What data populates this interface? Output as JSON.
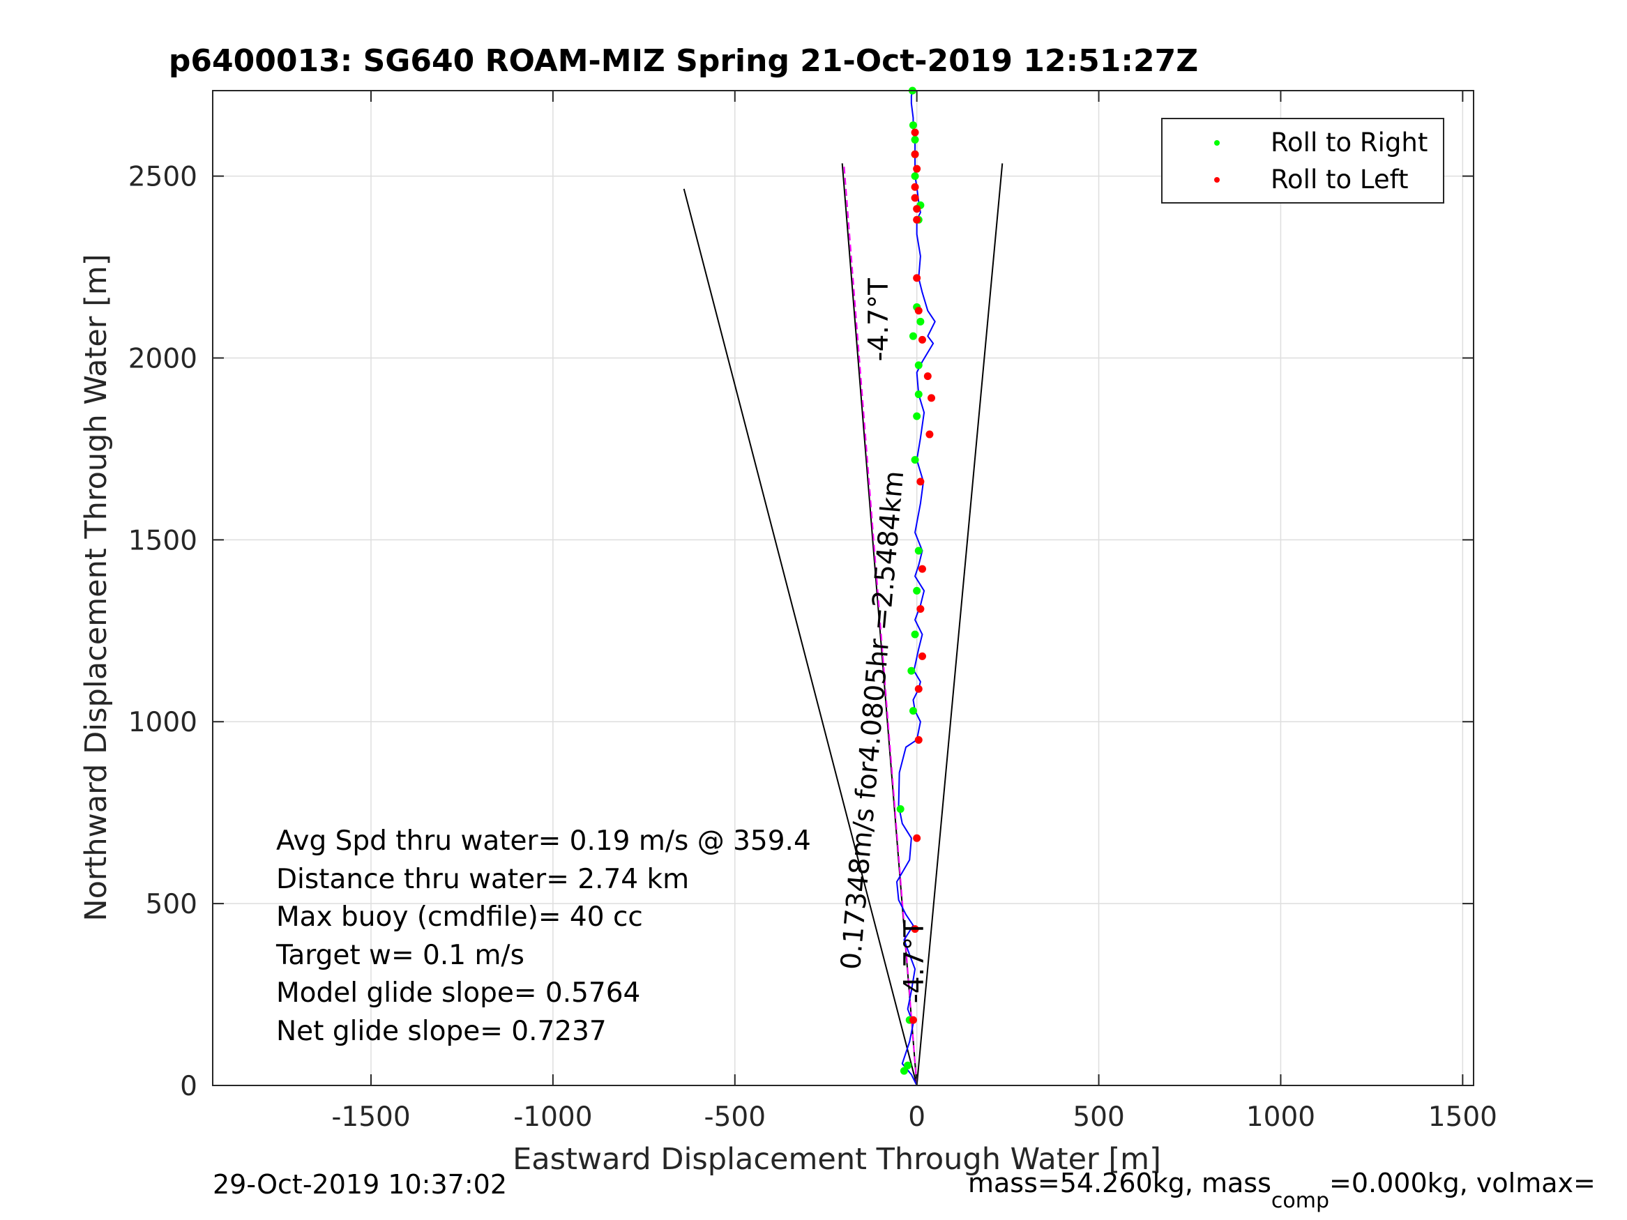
{
  "title": "p6400013: SG640 ROAM-MIZ Spring 21-Oct-2019 12:51:27Z",
  "chart_data": {
    "type": "line",
    "xlabel": "Eastward Displacement Through Water [m]",
    "ylabel": "Northward Displacement Through Water [m]",
    "xlim": [
      -1935,
      1530
    ],
    "ylim": [
      0,
      2735
    ],
    "xticks": [
      -1500,
      -1000,
      -500,
      0,
      500,
      1000,
      1500
    ],
    "yticks": [
      0,
      500,
      1000,
      1500,
      2000,
      2500
    ],
    "grid": true,
    "legend_position": "top-right",
    "legend": [
      {
        "label": "Roll to Right",
        "color": "#00ff00"
      },
      {
        "label": "Roll to Left",
        "color": "#ff0000"
      }
    ],
    "track": {
      "name": "glider-track",
      "color": "#0000ff",
      "x": [
        0,
        -15,
        -40,
        -20,
        -10,
        -25,
        -15,
        -5,
        -20,
        -35,
        -10,
        -30,
        -50,
        -55,
        -20,
        -15,
        -40,
        -50,
        -48,
        -30,
        0,
        10,
        -5,
        -10,
        5,
        10,
        -8,
        5,
        15,
        -5,
        10,
        20,
        -5,
        5,
        15,
        -5,
        10,
        18,
        0,
        10,
        20,
        5,
        0,
        15,
        45,
        30,
        50,
        30,
        15,
        5,
        10,
        0,
        0,
        10,
        5,
        0,
        -5,
        -5,
        -5,
        -5,
        -10,
        -10,
        -10,
        -15,
        -15,
        -12
      ],
      "y": [
        0,
        30,
        60,
        120,
        170,
        210,
        260,
        320,
        360,
        400,
        440,
        470,
        510,
        560,
        620,
        680,
        720,
        770,
        860,
        930,
        950,
        1000,
        1030,
        1060,
        1090,
        1110,
        1140,
        1200,
        1240,
        1280,
        1320,
        1360,
        1400,
        1430,
        1470,
        1520,
        1600,
        1660,
        1720,
        1780,
        1850,
        1900,
        1960,
        1990,
        2040,
        2060,
        2100,
        2130,
        2180,
        2220,
        2280,
        2340,
        2380,
        2400,
        2430,
        2470,
        2500,
        2540,
        2570,
        2600,
        2620,
        2640,
        2660,
        2700,
        2720,
        2735
      ]
    },
    "roll_right_points": {
      "x": [
        -35,
        -25,
        -20,
        -45,
        -10,
        -15,
        -5,
        0,
        5,
        -5,
        0,
        5,
        5,
        10,
        -10,
        0,
        5,
        10,
        -5,
        -5,
        -5,
        -10,
        -12
      ],
      "y": [
        40,
        55,
        180,
        760,
        1030,
        1140,
        1240,
        1360,
        1470,
        1720,
        1840,
        1900,
        1980,
        2100,
        2060,
        2140,
        2380,
        2420,
        2500,
        2560,
        2600,
        2640,
        2735
      ]
    },
    "roll_left_points": {
      "x": [
        -10,
        -5,
        0,
        5,
        5,
        15,
        10,
        15,
        10,
        35,
        40,
        30,
        15,
        5,
        0,
        0,
        0,
        -5,
        -5,
        0,
        -5,
        -5
      ],
      "y": [
        180,
        430,
        680,
        950,
        1090,
        1180,
        1310,
        1420,
        1660,
        1790,
        1890,
        1950,
        2050,
        2130,
        2220,
        2380,
        2410,
        2440,
        2470,
        2520,
        2560,
        2620
      ]
    },
    "reference_lines": [
      {
        "name": "heading-line",
        "color": "#000000",
        "x": [
          0,
          235
        ],
        "y": [
          0,
          2535
        ]
      },
      {
        "name": "heading-line",
        "color": "#000000",
        "x": [
          0,
          -205
        ],
        "y": [
          0,
          2535
        ]
      },
      {
        "name": "heading-line",
        "color": "#000000",
        "x": [
          0,
          -640
        ],
        "y": [
          0,
          2465
        ]
      },
      {
        "name": "heading-line",
        "color": "#ff00ff",
        "x": [
          0,
          -200
        ],
        "y": [
          0,
          2530
        ]
      }
    ],
    "annotations": [
      {
        "text": "-4.7°T",
        "x": -80,
        "y": 2105,
        "angle": -90
      },
      {
        "text": "0.17348m/s for4.0805hr =2.5484km",
        "x": -97,
        "y": 1002,
        "angle": -85
      },
      {
        "text": "-4.7°T",
        "x": 18,
        "y": 340,
        "angle": -90
      }
    ],
    "stats_text": [
      "Avg Spd thru water=  0.19 m/s @ 359.4",
      "Distance thru water=  2.74 km",
      "Max buoy (cmdfile)= 40 cc",
      "Target w= 0.1 m/s",
      "Model glide slope= 0.5764",
      "Net glide slope= 0.7237"
    ]
  },
  "footer": {
    "timestamp": "29-Oct-2019 10:37:02",
    "mass_prefix": "mass=54.260kg, mass",
    "mass_subscript": "comp",
    "mass_suffix": "=0.000kg, volmax="
  }
}
